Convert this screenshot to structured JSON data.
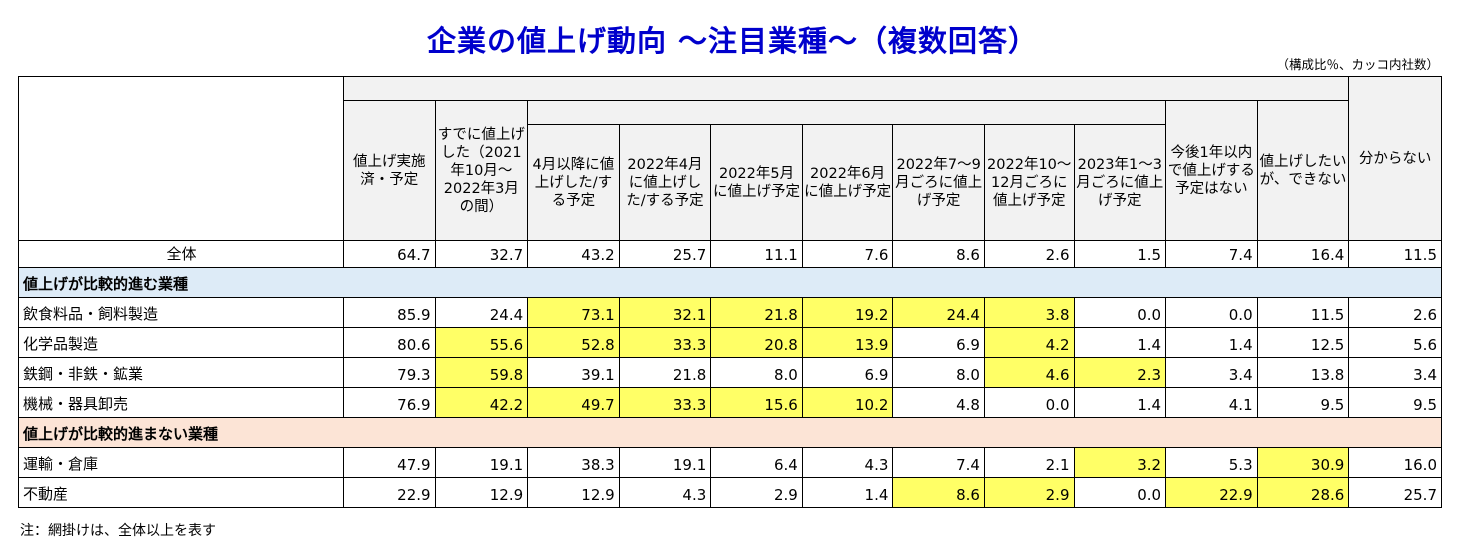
{
  "title": "企業の値上げ動向 ～注目業種～（複数回答）",
  "unit_note": "（構成比％、カッコ内社数）",
  "footnote": "注：網掛けは、全体以上を表す",
  "colors": {
    "highlight": "#ffff66",
    "section_advancing": "#ddebf7",
    "section_lagging": "#fce4d6",
    "title": "#0000cc"
  },
  "headers": {
    "implemented": "値上げ実施済・予定",
    "already": "すでに値上げした（2021年10月～2022年3月の間）",
    "april_after": "4月以降に値上げした/する予定",
    "apr2022": "2022年4月に値上げした/する予定",
    "may2022": "2022年5月に値上げ予定",
    "jun2022": "2022年6月に値上げ予定",
    "jul_sep2022": "2022年7～9月ごろに値上げ予定",
    "oct_dec2022": "2022年10～12月ごろに値上げ予定",
    "jan_mar2023": "2023年1～3月ごろに値上げ予定",
    "no_plan": "今後1年以内で値上げする予定はない",
    "cannot": "値上げしたいが、できない",
    "unknown": "分からない"
  },
  "total": {
    "label": "全体",
    "values": [
      "64.7",
      "32.7",
      "43.2",
      "25.7",
      "11.1",
      "7.6",
      "8.6",
      "2.6",
      "1.5",
      "7.4",
      "16.4",
      "11.5"
    ]
  },
  "sections": [
    {
      "label": "値上げが比較的進む業種",
      "rows": [
        {
          "label": "飲食料品・飼料製造",
          "values": [
            "85.9",
            "24.4",
            "73.1",
            "32.1",
            "21.8",
            "19.2",
            "24.4",
            "3.8",
            "0.0",
            "0.0",
            "11.5",
            "2.6"
          ],
          "hl": [
            false,
            false,
            true,
            true,
            true,
            true,
            true,
            true,
            false,
            false,
            false,
            false
          ]
        },
        {
          "label": "化学品製造",
          "values": [
            "80.6",
            "55.6",
            "52.8",
            "33.3",
            "20.8",
            "13.9",
            "6.9",
            "4.2",
            "1.4",
            "1.4",
            "12.5",
            "5.6"
          ],
          "hl": [
            false,
            true,
            true,
            true,
            true,
            true,
            false,
            true,
            false,
            false,
            false,
            false
          ]
        },
        {
          "label": "鉄鋼・非鉄・鉱業",
          "values": [
            "79.3",
            "59.8",
            "39.1",
            "21.8",
            "8.0",
            "6.9",
            "8.0",
            "4.6",
            "2.3",
            "3.4",
            "13.8",
            "3.4"
          ],
          "hl": [
            false,
            true,
            false,
            false,
            false,
            false,
            false,
            true,
            true,
            false,
            false,
            false
          ]
        },
        {
          "label": "機械・器具卸売",
          "values": [
            "76.9",
            "42.2",
            "49.7",
            "33.3",
            "15.6",
            "10.2",
            "4.8",
            "0.0",
            "1.4",
            "4.1",
            "9.5",
            "9.5"
          ],
          "hl": [
            false,
            true,
            true,
            true,
            true,
            true,
            false,
            false,
            false,
            false,
            false,
            false
          ]
        }
      ]
    },
    {
      "label": "値上げが比較的進まない業種",
      "rows": [
        {
          "label": "運輸・倉庫",
          "values": [
            "47.9",
            "19.1",
            "38.3",
            "19.1",
            "6.4",
            "4.3",
            "7.4",
            "2.1",
            "3.2",
            "5.3",
            "30.9",
            "16.0"
          ],
          "hl": [
            false,
            false,
            false,
            false,
            false,
            false,
            false,
            false,
            true,
            false,
            true,
            false
          ]
        },
        {
          "label": "不動産",
          "values": [
            "22.9",
            "12.9",
            "12.9",
            "4.3",
            "2.9",
            "1.4",
            "8.6",
            "2.9",
            "0.0",
            "22.9",
            "28.6",
            "25.7"
          ],
          "hl": [
            false,
            false,
            false,
            false,
            false,
            false,
            true,
            true,
            false,
            true,
            true,
            false
          ]
        }
      ]
    }
  ]
}
